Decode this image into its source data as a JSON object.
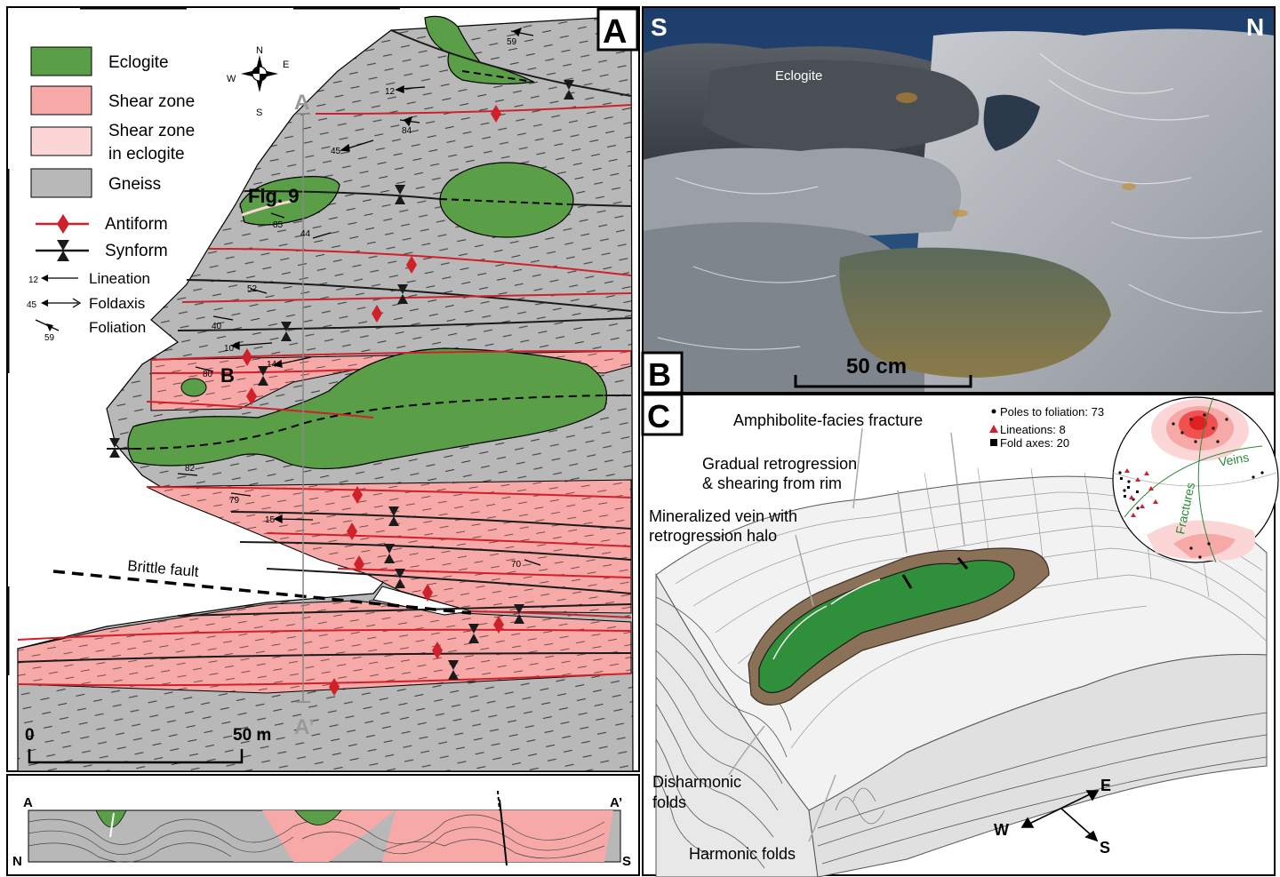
{
  "panels": {
    "a": "A",
    "b": "B",
    "c": "C"
  },
  "legend": {
    "eclogite": "Eclogite",
    "shear_zone": "Shear zone",
    "shear_zone_eclogite_1": "Shear zone",
    "shear_zone_eclogite_2": "in eclogite",
    "gneiss": "Gneiss",
    "antiform": "Antiform",
    "synform": "Synform",
    "lineation": "Lineation",
    "lineation_num": "12",
    "foldaxis": "Foldaxis",
    "foldaxis_num": "45",
    "foliation": "Foliation",
    "foliation_num": "59"
  },
  "compass": {
    "n": "N",
    "e": "E",
    "s": "S",
    "w": "W"
  },
  "map": {
    "fig9": "Fig. 9",
    "b_label": "B",
    "brittle_fault": "Brittle fault",
    "a_top": "A",
    "a_bottom": "A’",
    "scale_0": "0",
    "scale_50": "50 m",
    "measurements": [
      "59",
      "12",
      "84",
      "45",
      "85",
      "44",
      "52",
      "40",
      "10",
      "14",
      "80",
      "82",
      "79",
      "15",
      "70"
    ]
  },
  "section": {
    "a": "A",
    "a_prime": "A’",
    "n": "N",
    "s": "S"
  },
  "photo": {
    "s": "S",
    "n": "N",
    "eclogite": "Eclogite",
    "scale": "50 cm"
  },
  "block": {
    "amphibolite": "Amphibolite-facies fracture",
    "gradual_1": "Gradual retrogression",
    "gradual_2": "& shearing from rim",
    "vein_1": "Mineralized vein with",
    "vein_2": "retrogression halo",
    "disharmonic_1": "Disharmonic",
    "disharmonic_2": "folds",
    "harmonic": "Harmonic folds",
    "dir_e": "E",
    "dir_w": "W",
    "dir_s": "S"
  },
  "stereonet": {
    "poles": "Poles to foliation: 73",
    "lineations": "Lineations: 8",
    "fold_axes": "Fold axes: 20",
    "veins": "Veins",
    "fractures": "Fractures"
  },
  "colors": {
    "eclogite": "#5a9e48",
    "shear_zone": "#f7a9a8",
    "shear_zone_eclogite": "#fcd6d6",
    "gneiss": "#b8b8b8",
    "antiform": "#d0202a",
    "synform": "#1a1a1a"
  }
}
